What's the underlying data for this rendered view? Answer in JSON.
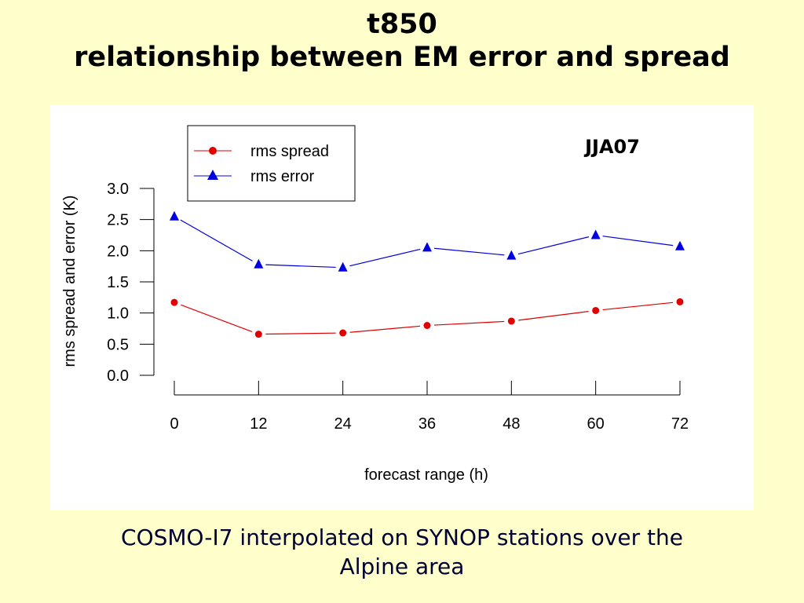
{
  "slide": {
    "title_line1": "t850",
    "title_line2": "relationship between EM error and spread",
    "caption_line1": "COSMO-I7 interpolated on SYNOP stations over the",
    "caption_line2": "Alpine area"
  },
  "colors": {
    "background": "#ffffcc",
    "panel": "#ffffff",
    "spread": "#e00000",
    "error": "#0000e0"
  },
  "chart_data": {
    "type": "line",
    "title": "",
    "annotation": "JJA07",
    "xlabel": "forecast range (h)",
    "ylabel": "rms spread and error (K)",
    "x": [
      0,
      12,
      24,
      36,
      48,
      60,
      72
    ],
    "xticks": [
      "0",
      "12",
      "24",
      "36",
      "48",
      "60",
      "72"
    ],
    "ylim": [
      0,
      3
    ],
    "yticks": [
      "0.0",
      "0.5",
      "1.0",
      "1.5",
      "2.0",
      "2.5",
      "3.0"
    ],
    "grid": false,
    "legend_position": "top-left",
    "series": [
      {
        "name": "rms spread",
        "marker": "circle",
        "color": "#e00000",
        "values": [
          1.17,
          0.66,
          0.68,
          0.8,
          0.87,
          1.04,
          1.18
        ]
      },
      {
        "name": "rms error",
        "marker": "triangle",
        "color": "#0000e0",
        "values": [
          2.55,
          1.78,
          1.73,
          2.05,
          1.92,
          2.25,
          2.07
        ]
      }
    ]
  }
}
